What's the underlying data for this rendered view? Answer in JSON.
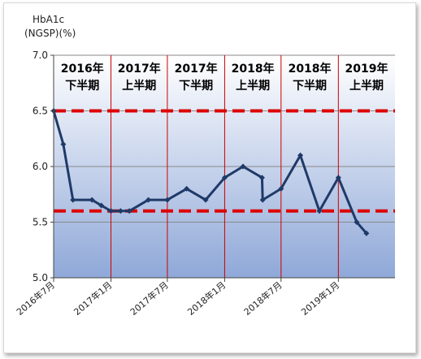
{
  "chart_data": {
    "type": "line",
    "ylabel_line1": "HbA1c",
    "ylabel_line2": "(NGSP)(%)",
    "ylim": [
      5.0,
      7.0
    ],
    "yticks": [
      "7.0",
      "6.5",
      "6.0",
      "5.5",
      "5.0"
    ],
    "xticks": [
      {
        "label": "2016年7月",
        "x": "2016-07"
      },
      {
        "label": "2017年1月",
        "x": "2017-01"
      },
      {
        "label": "2017年7月",
        "x": "2017-07"
      },
      {
        "label": "2018年1月",
        "x": "2018-01"
      },
      {
        "label": "2018年7月",
        "x": "2018-07"
      },
      {
        "label": "2019年1月",
        "x": "2019-01"
      }
    ],
    "periods": [
      {
        "year": "2016年",
        "half": "下半期",
        "from": "2016-07",
        "to": "2017-01"
      },
      {
        "year": "2017年",
        "half": "上半期",
        "from": "2017-01",
        "to": "2017-07"
      },
      {
        "year": "2017年",
        "half": "下半期",
        "from": "2017-07",
        "to": "2018-01"
      },
      {
        "year": "2018年",
        "half": "上半期",
        "from": "2018-01",
        "to": "2018-07"
      },
      {
        "year": "2018年",
        "half": "下半期",
        "from": "2018-07",
        "to": "2019-01"
      },
      {
        "year": "2019年",
        "half": "上半期",
        "from": "2019-01",
        "to": "2019-07"
      }
    ],
    "reference_lines": [
      6.5,
      5.6
    ],
    "colors": {
      "line": "#1f3a68",
      "reference": "#dd0000",
      "divider": "#cc0000",
      "bg_top": "#ffffff",
      "bg_bottom": "#8fa8d8"
    },
    "series": [
      {
        "points": [
          {
            "x": "2016-07-01",
            "y": 6.5
          },
          {
            "x": "2016-08-01",
            "y": 6.2
          },
          {
            "x": "2016-09-01",
            "y": 5.7
          },
          {
            "x": "2016-11-01",
            "y": 5.7
          },
          {
            "x": "2016-12-01",
            "y": 5.65
          },
          {
            "x": "2017-01-01",
            "y": 5.6
          },
          {
            "x": "2017-02-01",
            "y": 5.6
          },
          {
            "x": "2017-03-01",
            "y": 5.6
          },
          {
            "x": "2017-05-01",
            "y": 5.7
          },
          {
            "x": "2017-07-01",
            "y": 5.7
          },
          {
            "x": "2017-09-01",
            "y": 5.8
          },
          {
            "x": "2017-11-01",
            "y": 5.7
          },
          {
            "x": "2018-01-01",
            "y": 5.9
          },
          {
            "x": "2018-03-01",
            "y": 6.0
          },
          {
            "x": "2018-05-01",
            "y": 5.9
          },
          {
            "x": "2018-05-03",
            "y": 5.7
          },
          {
            "x": "2018-07-01",
            "y": 5.8
          },
          {
            "x": "2018-09-01",
            "y": 6.1
          },
          {
            "x": "2018-11-01",
            "y": 5.6
          },
          {
            "x": "2019-01-01",
            "y": 5.9
          },
          {
            "x": "2019-03-01",
            "y": 5.5
          },
          {
            "x": "2019-04-01",
            "y": 5.4
          }
        ]
      }
    ]
  }
}
